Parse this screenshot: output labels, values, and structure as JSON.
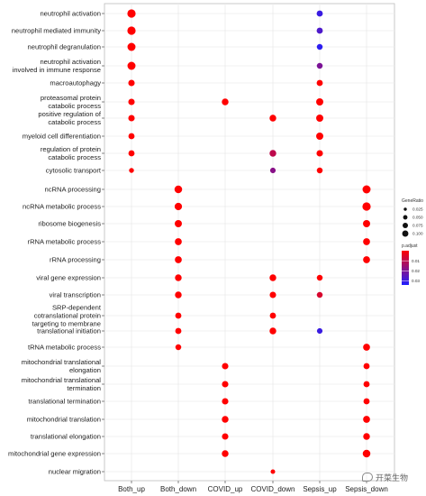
{
  "chart_data": {
    "type": "scatter",
    "title": "",
    "xlabel": "",
    "ylabel": "",
    "categories": [
      "Both_up",
      "Both_down",
      "COVID_up",
      "COVID_down",
      "Sepsis_up",
      "Sepsis_down"
    ],
    "terms": [
      "neutrophil activation",
      "neutrophil mediated immunity",
      "neutrophil degranulation",
      "neutrophil activation\ninvolved in immune response",
      "macroautophagy",
      "proteasomal protein\ncatabolic process",
      "positive regulation of\ncatabolic process",
      "myeloid cell differentiation",
      "regulation of protein\ncatabolic process",
      "cytosolic transport",
      "ncRNA processing",
      "ncRNA metabolic process",
      "ribosome biogenesis",
      "rRNA metabolic process",
      "rRNA processing",
      "viral gene expression",
      "viral transcription",
      "SRP-dependent\ncotranslational protein\ntargeting to membrane",
      "translational initiation",
      "tRNA metabolic process",
      "mitochondrial translational\nelongation",
      "mitochondrial translational\ntermination",
      "translational termination",
      "mitochondrial translation",
      "translational elongation",
      "mitochondrial gene expression",
      "nuclear migration"
    ],
    "points": [
      {
        "term": 0,
        "group": 0,
        "gene_ratio": 0.1,
        "p_adjust": 0.0
      },
      {
        "term": 1,
        "group": 0,
        "gene_ratio": 0.1,
        "p_adjust": 0.0
      },
      {
        "term": 2,
        "group": 0,
        "gene_ratio": 0.095,
        "p_adjust": 0.0
      },
      {
        "term": 3,
        "group": 0,
        "gene_ratio": 0.095,
        "p_adjust": 0.0
      },
      {
        "term": 4,
        "group": 0,
        "gene_ratio": 0.06,
        "p_adjust": 0.0
      },
      {
        "term": 5,
        "group": 0,
        "gene_ratio": 0.06,
        "p_adjust": 0.0
      },
      {
        "term": 6,
        "group": 0,
        "gene_ratio": 0.06,
        "p_adjust": 0.0
      },
      {
        "term": 7,
        "group": 0,
        "gene_ratio": 0.055,
        "p_adjust": 0.0
      },
      {
        "term": 8,
        "group": 0,
        "gene_ratio": 0.055,
        "p_adjust": 0.0
      },
      {
        "term": 9,
        "group": 0,
        "gene_ratio": 0.035,
        "p_adjust": 0.0
      },
      {
        "term": 0,
        "group": 4,
        "gene_ratio": 0.055,
        "p_adjust": 0.03
      },
      {
        "term": 1,
        "group": 4,
        "gene_ratio": 0.055,
        "p_adjust": 0.027
      },
      {
        "term": 2,
        "group": 4,
        "gene_ratio": 0.05,
        "p_adjust": 0.032
      },
      {
        "term": 3,
        "group": 4,
        "gene_ratio": 0.05,
        "p_adjust": 0.02
      },
      {
        "term": 4,
        "group": 4,
        "gene_ratio": 0.055,
        "p_adjust": 0.0
      },
      {
        "term": 5,
        "group": 4,
        "gene_ratio": 0.075,
        "p_adjust": 0.0
      },
      {
        "term": 6,
        "group": 4,
        "gene_ratio": 0.075,
        "p_adjust": 0.0
      },
      {
        "term": 7,
        "group": 4,
        "gene_ratio": 0.075,
        "p_adjust": 0.0
      },
      {
        "term": 8,
        "group": 4,
        "gene_ratio": 0.06,
        "p_adjust": 0.0
      },
      {
        "term": 9,
        "group": 4,
        "gene_ratio": 0.05,
        "p_adjust": 0.0
      },
      {
        "term": 15,
        "group": 4,
        "gene_ratio": 0.05,
        "p_adjust": 0.0
      },
      {
        "term": 16,
        "group": 4,
        "gene_ratio": 0.05,
        "p_adjust": 0.006
      },
      {
        "term": 18,
        "group": 4,
        "gene_ratio": 0.045,
        "p_adjust": 0.03
      },
      {
        "term": 5,
        "group": 2,
        "gene_ratio": 0.065,
        "p_adjust": 0.0
      },
      {
        "term": 6,
        "group": 3,
        "gene_ratio": 0.065,
        "p_adjust": 0.0
      },
      {
        "term": 8,
        "group": 3,
        "gene_ratio": 0.065,
        "p_adjust": 0.01
      },
      {
        "term": 9,
        "group": 3,
        "gene_ratio": 0.045,
        "p_adjust": 0.018
      },
      {
        "term": 10,
        "group": 1,
        "gene_ratio": 0.085,
        "p_adjust": 0.0
      },
      {
        "term": 11,
        "group": 1,
        "gene_ratio": 0.08,
        "p_adjust": 0.0
      },
      {
        "term": 12,
        "group": 1,
        "gene_ratio": 0.075,
        "p_adjust": 0.0
      },
      {
        "term": 13,
        "group": 1,
        "gene_ratio": 0.07,
        "p_adjust": 0.0
      },
      {
        "term": 14,
        "group": 1,
        "gene_ratio": 0.07,
        "p_adjust": 0.0
      },
      {
        "term": 15,
        "group": 1,
        "gene_ratio": 0.065,
        "p_adjust": 0.0
      },
      {
        "term": 16,
        "group": 1,
        "gene_ratio": 0.065,
        "p_adjust": 0.0
      },
      {
        "term": 17,
        "group": 1,
        "gene_ratio": 0.055,
        "p_adjust": 0.0
      },
      {
        "term": 18,
        "group": 1,
        "gene_ratio": 0.055,
        "p_adjust": 0.0
      },
      {
        "term": 19,
        "group": 1,
        "gene_ratio": 0.05,
        "p_adjust": 0.0
      },
      {
        "term": 10,
        "group": 5,
        "gene_ratio": 0.095,
        "p_adjust": 0.0
      },
      {
        "term": 11,
        "group": 5,
        "gene_ratio": 0.1,
        "p_adjust": 0.0
      },
      {
        "term": 12,
        "group": 5,
        "gene_ratio": 0.075,
        "p_adjust": 0.0
      },
      {
        "term": 13,
        "group": 5,
        "gene_ratio": 0.07,
        "p_adjust": 0.0
      },
      {
        "term": 14,
        "group": 5,
        "gene_ratio": 0.07,
        "p_adjust": 0.0
      },
      {
        "term": 19,
        "group": 5,
        "gene_ratio": 0.07,
        "p_adjust": 0.0
      },
      {
        "term": 20,
        "group": 5,
        "gene_ratio": 0.055,
        "p_adjust": 0.0
      },
      {
        "term": 21,
        "group": 5,
        "gene_ratio": 0.055,
        "p_adjust": 0.0
      },
      {
        "term": 22,
        "group": 5,
        "gene_ratio": 0.055,
        "p_adjust": 0.0
      },
      {
        "term": 23,
        "group": 5,
        "gene_ratio": 0.07,
        "p_adjust": 0.0
      },
      {
        "term": 24,
        "group": 5,
        "gene_ratio": 0.065,
        "p_adjust": 0.0
      },
      {
        "term": 25,
        "group": 5,
        "gene_ratio": 0.085,
        "p_adjust": 0.0
      },
      {
        "term": 15,
        "group": 3,
        "gene_ratio": 0.065,
        "p_adjust": 0.0
      },
      {
        "term": 16,
        "group": 3,
        "gene_ratio": 0.06,
        "p_adjust": 0.0
      },
      {
        "term": 17,
        "group": 3,
        "gene_ratio": 0.055,
        "p_adjust": 0.0
      },
      {
        "term": 18,
        "group": 3,
        "gene_ratio": 0.065,
        "p_adjust": 0.0
      },
      {
        "term": 26,
        "group": 3,
        "gene_ratio": 0.03,
        "p_adjust": 0.0
      },
      {
        "term": 20,
        "group": 2,
        "gene_ratio": 0.06,
        "p_adjust": 0.0
      },
      {
        "term": 21,
        "group": 2,
        "gene_ratio": 0.06,
        "p_adjust": 0.0
      },
      {
        "term": 22,
        "group": 2,
        "gene_ratio": 0.06,
        "p_adjust": 0.0
      },
      {
        "term": 23,
        "group": 2,
        "gene_ratio": 0.065,
        "p_adjust": 0.0
      },
      {
        "term": 24,
        "group": 2,
        "gene_ratio": 0.06,
        "p_adjust": 0.0
      },
      {
        "term": 25,
        "group": 2,
        "gene_ratio": 0.065,
        "p_adjust": 0.0
      }
    ],
    "legend": {
      "size_title": "GeneRatio",
      "size_entries": [
        "0.025",
        "0.050",
        "0.075",
        "0.100"
      ],
      "size_values": [
        0.025,
        0.05,
        0.075,
        0.1
      ],
      "color_title": "p.adjust",
      "color_ticks": [
        "0.01",
        "0.02",
        "0.03"
      ],
      "color_tick_values": [
        0.01,
        0.02,
        0.03
      ],
      "color_range": [
        0.0,
        0.034
      ],
      "color_low": "#ff0000",
      "color_high": "#1f1fff"
    },
    "grid": true,
    "legend_placement": "right"
  },
  "watermark": "开菜生物"
}
